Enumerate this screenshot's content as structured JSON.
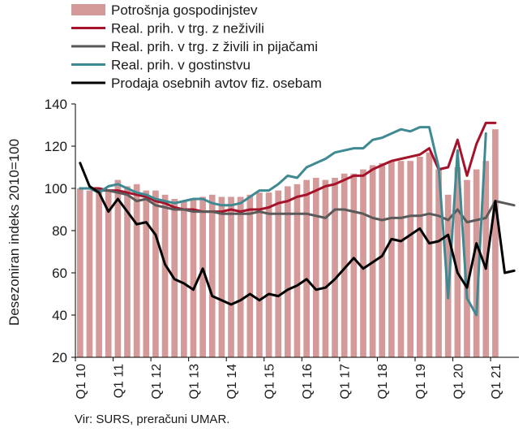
{
  "chart_data": {
    "type": "bar",
    "ylabel": "Desezoniran indeks 2010=100",
    "ylim": [
      20,
      140
    ],
    "yticks": [
      20,
      40,
      60,
      80,
      100,
      120,
      140
    ],
    "grid": false,
    "legend_position": "top-left",
    "x_tick_labels": [
      "Q1 10",
      "Q1 11",
      "Q1 12",
      "Q1 13",
      "Q1 14",
      "Q1 15",
      "Q1 16",
      "Q1 17",
      "Q1 18",
      "Q1 19",
      "Q1 20",
      "Q1 21"
    ],
    "x_start": "Q1 10",
    "quarters_count": 47,
    "series": [
      {
        "name": "Potrošnja gospodinjstev",
        "kind": "bar",
        "color": "#d49a9a",
        "values": [
          100,
          99,
          100,
          99,
          104,
          101,
          102,
          99,
          99,
          97,
          95,
          94,
          95,
          96,
          97,
          96,
          96,
          96,
          97,
          98,
          98,
          99,
          101,
          102,
          104,
          105,
          104,
          105,
          107,
          107,
          109,
          111,
          112,
          113,
          113,
          113,
          115,
          117,
          109,
          97,
          110,
          104,
          109,
          113,
          128
        ]
      },
      {
        "name": "Real. prih. v trg. z neživili",
        "kind": "line",
        "color": "#a5122a",
        "values": [
          100,
          100,
          100,
          99,
          99,
          98,
          97,
          96,
          94,
          93,
          91,
          90,
          90,
          89,
          89,
          89,
          90,
          89,
          90,
          90,
          91,
          93,
          94,
          96,
          97,
          99,
          101,
          102,
          104,
          106,
          106,
          109,
          111,
          113,
          114,
          115,
          116,
          119,
          109,
          110,
          123,
          106,
          121,
          131,
          131
        ]
      },
      {
        "name": "Real. prih. v trg. z živili in pijačami",
        "kind": "line",
        "color": "#5a5a5a",
        "values": [
          100,
          100,
          99,
          99,
          98,
          97,
          94,
          95,
          92,
          91,
          90,
          90,
          89,
          89,
          89,
          88,
          88,
          88,
          88,
          89,
          88,
          88,
          88,
          88,
          88,
          87,
          86,
          90,
          90,
          89,
          88,
          86,
          85,
          86,
          86,
          87,
          87,
          88,
          87,
          85,
          90,
          84,
          85,
          86,
          94,
          93,
          92
        ]
      },
      {
        "name": "Real. prih. v gostinstvu",
        "kind": "line",
        "color": "#3f8a92",
        "values": [
          100,
          100,
          98,
          101,
          102,
          100,
          98,
          97,
          95,
          94,
          93,
          94,
          95,
          95,
          93,
          92,
          92,
          93,
          96,
          99,
          99,
          102,
          106,
          105,
          110,
          112,
          114,
          117,
          118,
          119,
          119,
          123,
          124,
          126,
          128,
          127,
          129,
          129,
          110,
          48,
          118,
          48,
          40,
          126
        ]
      },
      {
        "name": "Prodaja osebnih avtov fiz. osebam",
        "kind": "line",
        "color": "#000000",
        "values": [
          112,
          101,
          98,
          89,
          95,
          89,
          83,
          84,
          78,
          64,
          57,
          55,
          52,
          62,
          49,
          47,
          45,
          47,
          50,
          47,
          50,
          49,
          52,
          54,
          57,
          52,
          53,
          57,
          62,
          67,
          62,
          65,
          68,
          76,
          75,
          78,
          81,
          74,
          75,
          78,
          60,
          53,
          74,
          62,
          94,
          60,
          61
        ]
      }
    ]
  },
  "source": "Vir: SURS, preračuni UMAR."
}
